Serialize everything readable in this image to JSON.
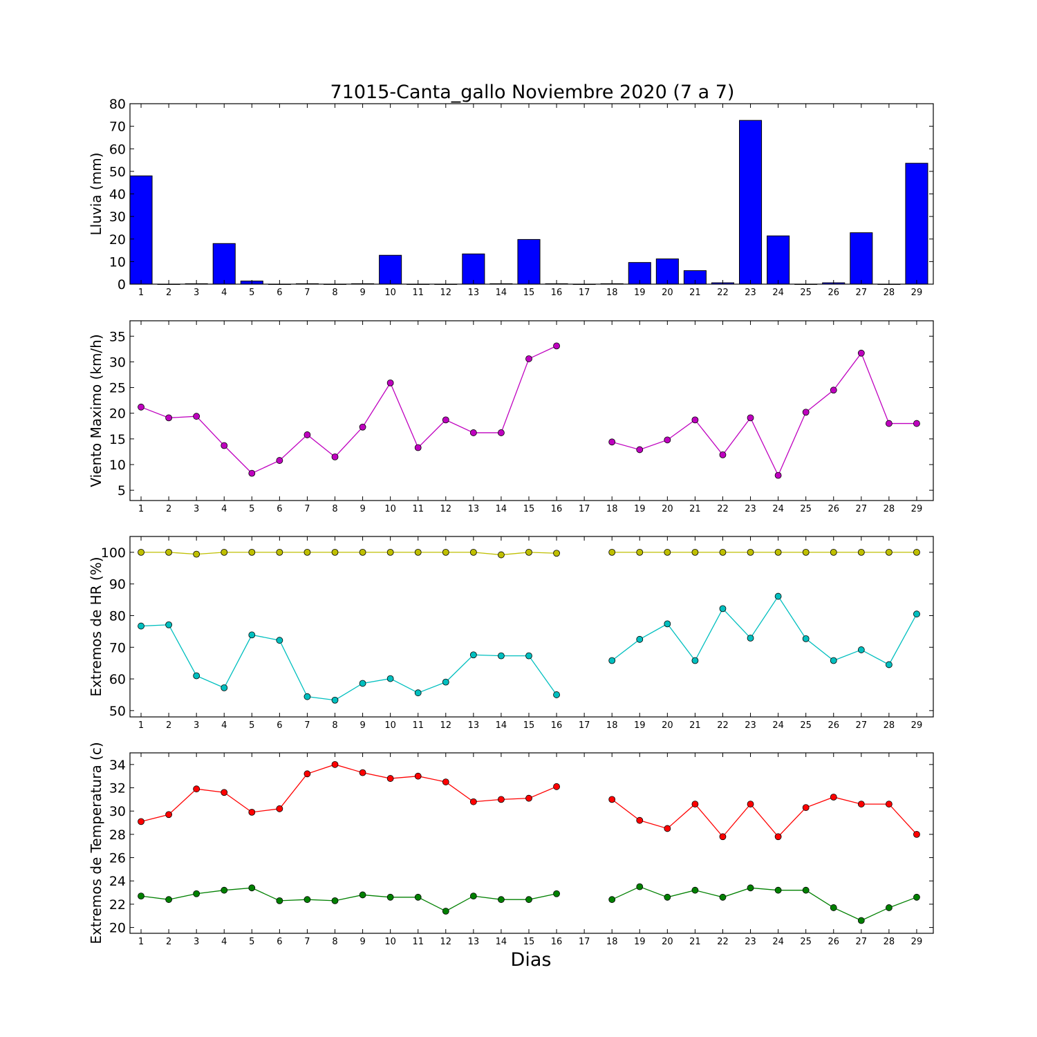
{
  "title": "71015-Canta_gallo Noviembre 2020  (7 a 7)",
  "xlabel": "Dias",
  "chart_data": [
    {
      "type": "bar",
      "ylabel": "Lluvia (mm)",
      "ylim": [
        0,
        80
      ],
      "yticks": [
        0,
        10,
        20,
        30,
        40,
        50,
        60,
        70,
        80
      ],
      "categories": [
        "1",
        "2",
        "3",
        "4",
        "5",
        "6",
        "7",
        "8",
        "9",
        "10",
        "11",
        "12",
        "13",
        "14",
        "15",
        "16",
        "17",
        "18",
        "19",
        "20",
        "21",
        "22",
        "23",
        "24",
        "25",
        "26",
        "27",
        "28",
        "29"
      ],
      "series": [
        {
          "color": "#0000ff",
          "values": [
            48,
            0,
            0.2,
            18,
            1.4,
            0,
            0.2,
            0,
            0.2,
            12.8,
            0,
            0,
            13.4,
            0.2,
            19.8,
            0.2,
            0,
            0.2,
            9.6,
            11.2,
            6,
            0.6,
            72.6,
            21.4,
            0,
            0.6,
            22.8,
            0,
            53.6
          ]
        }
      ]
    },
    {
      "type": "line",
      "ylabel": "Viento Maximo (km/h)",
      "ylim": [
        3,
        38
      ],
      "yticks": [
        5,
        10,
        15,
        20,
        25,
        30,
        35
      ],
      "categories": [
        "1",
        "2",
        "3",
        "4",
        "5",
        "6",
        "7",
        "8",
        "9",
        "10",
        "11",
        "12",
        "13",
        "14",
        "15",
        "16",
        "17",
        "18",
        "19",
        "20",
        "21",
        "22",
        "23",
        "24",
        "25",
        "26",
        "27",
        "28",
        "29"
      ],
      "series": [
        {
          "color": "#bf00bf",
          "values": [
            21.2,
            19.1,
            19.4,
            13.7,
            8.3,
            10.8,
            15.8,
            11.5,
            17.3,
            25.9,
            13.3,
            18.7,
            16.2,
            16.2,
            30.6,
            33.1,
            null,
            14.4,
            12.9,
            14.8,
            18.7,
            11.9,
            19.1,
            7.9,
            20.2,
            24.5,
            31.7,
            18.0,
            18.0
          ]
        }
      ]
    },
    {
      "type": "line",
      "ylabel": "Extremos de HR (%)",
      "ylim": [
        48,
        105
      ],
      "yticks": [
        50,
        60,
        70,
        80,
        90,
        100
      ],
      "categories": [
        "1",
        "2",
        "3",
        "4",
        "5",
        "6",
        "7",
        "8",
        "9",
        "10",
        "11",
        "12",
        "13",
        "14",
        "15",
        "16",
        "17",
        "18",
        "19",
        "20",
        "21",
        "22",
        "23",
        "24",
        "25",
        "26",
        "27",
        "28",
        "29"
      ],
      "series": [
        {
          "color": "#bfbf00",
          "values": [
            100,
            100,
            99.4,
            100,
            100,
            100,
            100,
            100,
            100,
            100,
            100,
            100,
            100,
            99.2,
            100,
            99.7,
            null,
            100,
            100,
            100,
            100,
            100,
            100,
            100,
            100,
            100,
            100,
            100,
            100
          ]
        },
        {
          "color": "#00bfbf",
          "values": [
            76.7,
            77.1,
            61.0,
            57.2,
            73.9,
            72.2,
            54.4,
            53.3,
            58.6,
            60.1,
            55.6,
            59.0,
            67.6,
            67.3,
            67.3,
            55.0,
            null,
            65.8,
            72.5,
            77.4,
            65.8,
            82.2,
            72.9,
            86.1,
            72.7,
            65.8,
            69.2,
            64.5,
            80.5
          ]
        }
      ]
    },
    {
      "type": "line",
      "ylabel": "Extremos de Temperatura (c)",
      "ylim": [
        19.5,
        35
      ],
      "yticks": [
        20,
        22,
        24,
        26,
        28,
        30,
        32,
        34
      ],
      "categories": [
        "1",
        "2",
        "3",
        "4",
        "5",
        "6",
        "7",
        "8",
        "9",
        "10",
        "11",
        "12",
        "13",
        "14",
        "15",
        "16",
        "17",
        "18",
        "19",
        "20",
        "21",
        "22",
        "23",
        "24",
        "25",
        "26",
        "27",
        "28",
        "29"
      ],
      "series": [
        {
          "color": "#ff0000",
          "values": [
            29.1,
            29.7,
            31.9,
            31.6,
            29.9,
            30.2,
            33.2,
            34.0,
            33.3,
            32.8,
            33.0,
            32.5,
            30.8,
            31.0,
            31.1,
            32.1,
            null,
            31.0,
            29.2,
            28.5,
            30.6,
            27.8,
            30.6,
            27.8,
            30.3,
            31.2,
            30.6,
            30.6,
            28.0
          ]
        },
        {
          "color": "#008000",
          "values": [
            22.7,
            22.4,
            22.9,
            23.2,
            23.4,
            22.3,
            22.4,
            22.3,
            22.8,
            22.6,
            22.6,
            21.4,
            22.7,
            22.4,
            22.4,
            22.9,
            null,
            22.4,
            23.5,
            22.6,
            23.2,
            22.6,
            23.4,
            23.2,
            23.2,
            21.7,
            20.6,
            21.7,
            22.6
          ]
        }
      ]
    }
  ]
}
